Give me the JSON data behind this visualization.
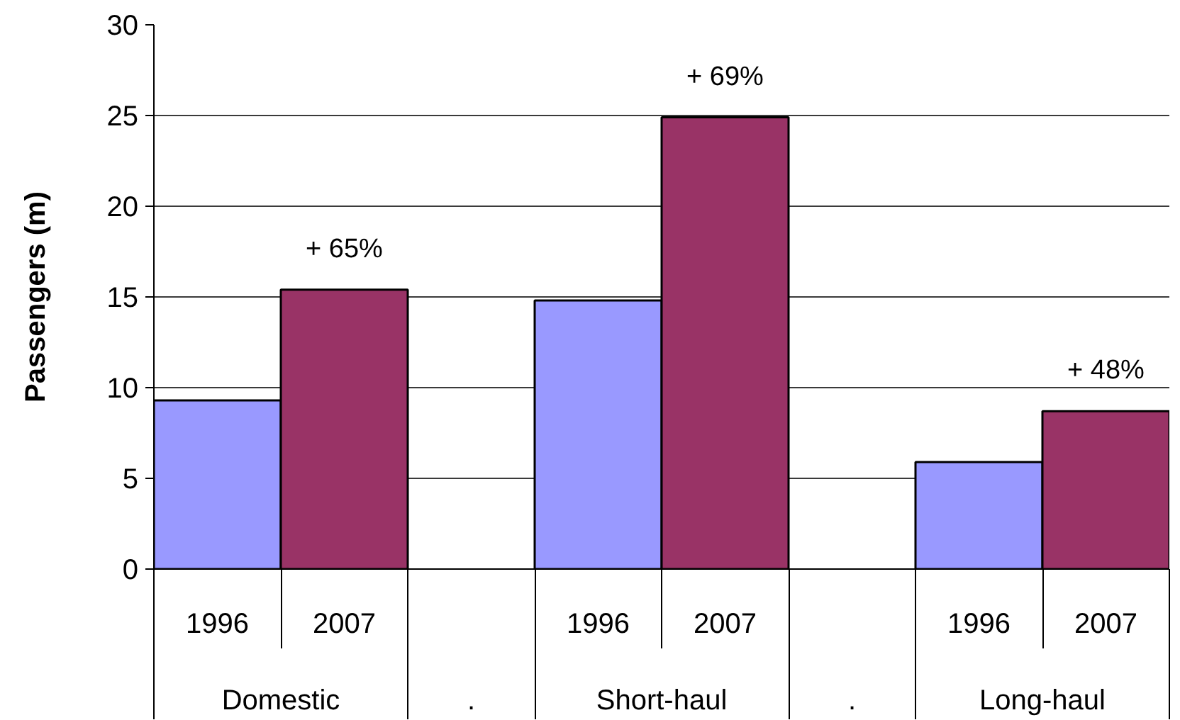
{
  "chart_data": {
    "type": "bar",
    "ylabel": "Passengers (m)",
    "categories": [
      "1996",
      "2007",
      null,
      "1996",
      "2007",
      null,
      "1996",
      "2007"
    ],
    "values": [
      9.3,
      15.4,
      null,
      14.8,
      24.9,
      null,
      5.9,
      8.7
    ],
    "colors": [
      "#9999ff",
      "#993366",
      null,
      "#9999ff",
      "#993366",
      null,
      "#9999ff",
      "#993366"
    ],
    "annotations": [
      "Domestic",
      ".",
      "Short-haul",
      ".",
      "Long-haul",
      "+ 65%",
      "+ 69%",
      "+ 48%"
    ],
    "ylim": [
      0,
      30
    ],
    "yticks": [
      0,
      5,
      10,
      15,
      20,
      25,
      30
    ],
    "grid": "y"
  }
}
